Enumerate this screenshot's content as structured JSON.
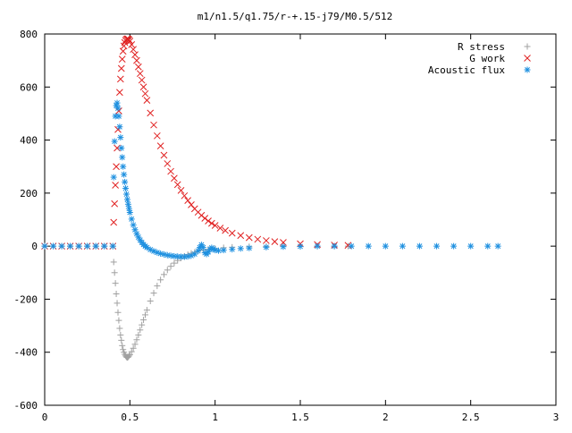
{
  "chart_data": {
    "type": "scatter",
    "title": "m1/n1.5/q1.75/r-+.15-j79/M0.5/512",
    "xlabel": "",
    "ylabel": "",
    "xlim": [
      0,
      3
    ],
    "ylim": [
      -600,
      800
    ],
    "grid": false,
    "legend_position": "top-right",
    "xticks": [
      {
        "value": 0,
        "label": "0"
      },
      {
        "value": 0.5,
        "label": "0.5"
      },
      {
        "value": 1,
        "label": "1"
      },
      {
        "value": 1.5,
        "label": "1.5"
      },
      {
        "value": 2,
        "label": "2"
      },
      {
        "value": 2.5,
        "label": "2.5"
      },
      {
        "value": 3,
        "label": "3"
      }
    ],
    "yticks": [
      {
        "value": -600,
        "label": "-600"
      },
      {
        "value": -400,
        "label": "-400"
      },
      {
        "value": -200,
        "label": "-200"
      },
      {
        "value": 0,
        "label": "0"
      },
      {
        "value": 200,
        "label": "200"
      },
      {
        "value": 400,
        "label": "400"
      },
      {
        "value": 600,
        "label": "600"
      },
      {
        "value": 800,
        "label": "800"
      }
    ],
    "series": [
      {
        "name": "R stress",
        "marker": "plus",
        "color": "#a0a0a0",
        "points": [
          [
            0.0,
            0
          ],
          [
            0.05,
            0
          ],
          [
            0.1,
            0
          ],
          [
            0.15,
            0
          ],
          [
            0.2,
            0
          ],
          [
            0.25,
            0
          ],
          [
            0.3,
            0
          ],
          [
            0.35,
            0
          ],
          [
            0.4,
            0
          ],
          [
            0.405,
            -60
          ],
          [
            0.41,
            -100
          ],
          [
            0.415,
            -140
          ],
          [
            0.42,
            -180
          ],
          [
            0.425,
            -215
          ],
          [
            0.43,
            -250
          ],
          [
            0.435,
            -280
          ],
          [
            0.44,
            -310
          ],
          [
            0.445,
            -335
          ],
          [
            0.45,
            -355
          ],
          [
            0.455,
            -375
          ],
          [
            0.46,
            -390
          ],
          [
            0.465,
            -400
          ],
          [
            0.47,
            -408
          ],
          [
            0.475,
            -414
          ],
          [
            0.48,
            -418
          ],
          [
            0.485,
            -420
          ],
          [
            0.49,
            -418
          ],
          [
            0.495,
            -414
          ],
          [
            0.5,
            -409
          ],
          [
            0.51,
            -398
          ],
          [
            0.52,
            -385
          ],
          [
            0.53,
            -370
          ],
          [
            0.54,
            -353
          ],
          [
            0.55,
            -335
          ],
          [
            0.56,
            -316
          ],
          [
            0.57,
            -297
          ],
          [
            0.58,
            -278
          ],
          [
            0.59,
            -259
          ],
          [
            0.6,
            -241
          ],
          [
            0.62,
            -207
          ],
          [
            0.64,
            -177
          ],
          [
            0.66,
            -150
          ],
          [
            0.68,
            -127
          ],
          [
            0.7,
            -107
          ],
          [
            0.72,
            -90
          ],
          [
            0.74,
            -76
          ],
          [
            0.76,
            -64
          ],
          [
            0.78,
            -54
          ],
          [
            0.8,
            -45
          ],
          [
            0.82,
            -38
          ],
          [
            0.84,
            -32
          ],
          [
            0.86,
            -27
          ],
          [
            0.88,
            -23
          ],
          [
            0.9,
            -19
          ],
          [
            0.93,
            -15
          ],
          [
            0.96,
            -12
          ],
          [
            1.0,
            -9
          ],
          [
            1.05,
            -6
          ],
          [
            1.1,
            -4
          ],
          [
            1.2,
            -2
          ],
          [
            1.3,
            -1
          ],
          [
            1.4,
            0
          ],
          [
            1.5,
            0
          ],
          [
            1.6,
            0
          ],
          [
            1.7,
            0
          ],
          [
            1.78,
            0
          ]
        ]
      },
      {
        "name": "G work",
        "marker": "cross",
        "color": "#e02020",
        "points": [
          [
            0.0,
            0
          ],
          [
            0.05,
            0
          ],
          [
            0.1,
            0
          ],
          [
            0.15,
            0
          ],
          [
            0.2,
            0
          ],
          [
            0.25,
            0
          ],
          [
            0.3,
            0
          ],
          [
            0.35,
            0
          ],
          [
            0.4,
            0
          ],
          [
            0.405,
            90
          ],
          [
            0.41,
            160
          ],
          [
            0.415,
            230
          ],
          [
            0.42,
            300
          ],
          [
            0.425,
            370
          ],
          [
            0.43,
            440
          ],
          [
            0.435,
            510
          ],
          [
            0.44,
            580
          ],
          [
            0.445,
            630
          ],
          [
            0.45,
            670
          ],
          [
            0.455,
            705
          ],
          [
            0.46,
            735
          ],
          [
            0.465,
            755
          ],
          [
            0.47,
            768
          ],
          [
            0.475,
            776
          ],
          [
            0.48,
            780
          ],
          [
            0.485,
            782
          ],
          [
            0.49,
            781
          ],
          [
            0.495,
            778
          ],
          [
            0.5,
            773
          ],
          [
            0.51,
            760
          ],
          [
            0.52,
            742
          ],
          [
            0.53,
            722
          ],
          [
            0.54,
            700
          ],
          [
            0.55,
            676
          ],
          [
            0.56,
            651
          ],
          [
            0.57,
            626
          ],
          [
            0.58,
            600
          ],
          [
            0.59,
            575
          ],
          [
            0.6,
            550
          ],
          [
            0.62,
            502
          ],
          [
            0.64,
            457
          ],
          [
            0.66,
            416
          ],
          [
            0.68,
            378
          ],
          [
            0.7,
            343
          ],
          [
            0.72,
            311
          ],
          [
            0.74,
            282
          ],
          [
            0.76,
            256
          ],
          [
            0.78,
            232
          ],
          [
            0.8,
            210
          ],
          [
            0.82,
            190
          ],
          [
            0.84,
            172
          ],
          [
            0.86,
            156
          ],
          [
            0.88,
            141
          ],
          [
            0.9,
            128
          ],
          [
            0.92,
            116
          ],
          [
            0.94,
            105
          ],
          [
            0.96,
            95
          ],
          [
            0.98,
            86
          ],
          [
            1.0,
            78
          ],
          [
            1.03,
            68
          ],
          [
            1.06,
            59
          ],
          [
            1.1,
            49
          ],
          [
            1.15,
            40
          ],
          [
            1.2,
            32
          ],
          [
            1.25,
            26
          ],
          [
            1.3,
            21
          ],
          [
            1.35,
            17
          ],
          [
            1.4,
            14
          ],
          [
            1.5,
            9
          ],
          [
            1.6,
            6
          ],
          [
            1.7,
            4
          ],
          [
            1.78,
            3
          ]
        ]
      },
      {
        "name": "Acoustic flux",
        "marker": "star",
        "color": "#1e90e0",
        "points": [
          [
            0.0,
            0
          ],
          [
            0.05,
            0
          ],
          [
            0.1,
            0
          ],
          [
            0.15,
            0
          ],
          [
            0.2,
            0
          ],
          [
            0.25,
            0
          ],
          [
            0.3,
            0
          ],
          [
            0.35,
            0
          ],
          [
            0.4,
            0
          ],
          [
            0.405,
            260
          ],
          [
            0.41,
            395
          ],
          [
            0.415,
            490
          ],
          [
            0.42,
            530
          ],
          [
            0.425,
            540
          ],
          [
            0.43,
            520
          ],
          [
            0.435,
            490
          ],
          [
            0.44,
            450
          ],
          [
            0.445,
            410
          ],
          [
            0.45,
            370
          ],
          [
            0.455,
            335
          ],
          [
            0.46,
            300
          ],
          [
            0.465,
            270
          ],
          [
            0.47,
            242
          ],
          [
            0.475,
            218
          ],
          [
            0.48,
            196
          ],
          [
            0.485,
            176
          ],
          [
            0.49,
            158
          ],
          [
            0.495,
            142
          ],
          [
            0.5,
            127
          ],
          [
            0.51,
            102
          ],
          [
            0.52,
            80
          ],
          [
            0.53,
            62
          ],
          [
            0.54,
            47
          ],
          [
            0.55,
            34
          ],
          [
            0.56,
            23
          ],
          [
            0.57,
            14
          ],
          [
            0.58,
            6
          ],
          [
            0.59,
            0
          ],
          [
            0.6,
            -5
          ],
          [
            0.62,
            -13
          ],
          [
            0.64,
            -19
          ],
          [
            0.66,
            -24
          ],
          [
            0.68,
            -28
          ],
          [
            0.7,
            -31
          ],
          [
            0.72,
            -34
          ],
          [
            0.74,
            -36
          ],
          [
            0.76,
            -38
          ],
          [
            0.78,
            -39
          ],
          [
            0.8,
            -40
          ],
          [
            0.82,
            -40
          ],
          [
            0.84,
            -39
          ],
          [
            0.86,
            -36
          ],
          [
            0.88,
            -30
          ],
          [
            0.9,
            -18
          ],
          [
            0.91,
            -5
          ],
          [
            0.92,
            5
          ],
          [
            0.93,
            -5
          ],
          [
            0.94,
            -25
          ],
          [
            0.95,
            -30
          ],
          [
            0.96,
            -22
          ],
          [
            0.97,
            -12
          ],
          [
            0.98,
            -6
          ],
          [
            0.99,
            -10
          ],
          [
            1.0,
            -15
          ],
          [
            1.02,
            -17
          ],
          [
            1.05,
            -15
          ],
          [
            1.1,
            -12
          ],
          [
            1.15,
            -9
          ],
          [
            1.2,
            -7
          ],
          [
            1.3,
            -4
          ],
          [
            1.4,
            -2
          ],
          [
            1.5,
            -1
          ],
          [
            1.6,
            0
          ],
          [
            1.7,
            0
          ],
          [
            1.8,
            0
          ],
          [
            1.9,
            0
          ],
          [
            2.0,
            0
          ],
          [
            2.1,
            0
          ],
          [
            2.2,
            0
          ],
          [
            2.3,
            0
          ],
          [
            2.4,
            0
          ],
          [
            2.5,
            0
          ],
          [
            2.6,
            0
          ],
          [
            2.66,
            0
          ]
        ]
      }
    ]
  }
}
